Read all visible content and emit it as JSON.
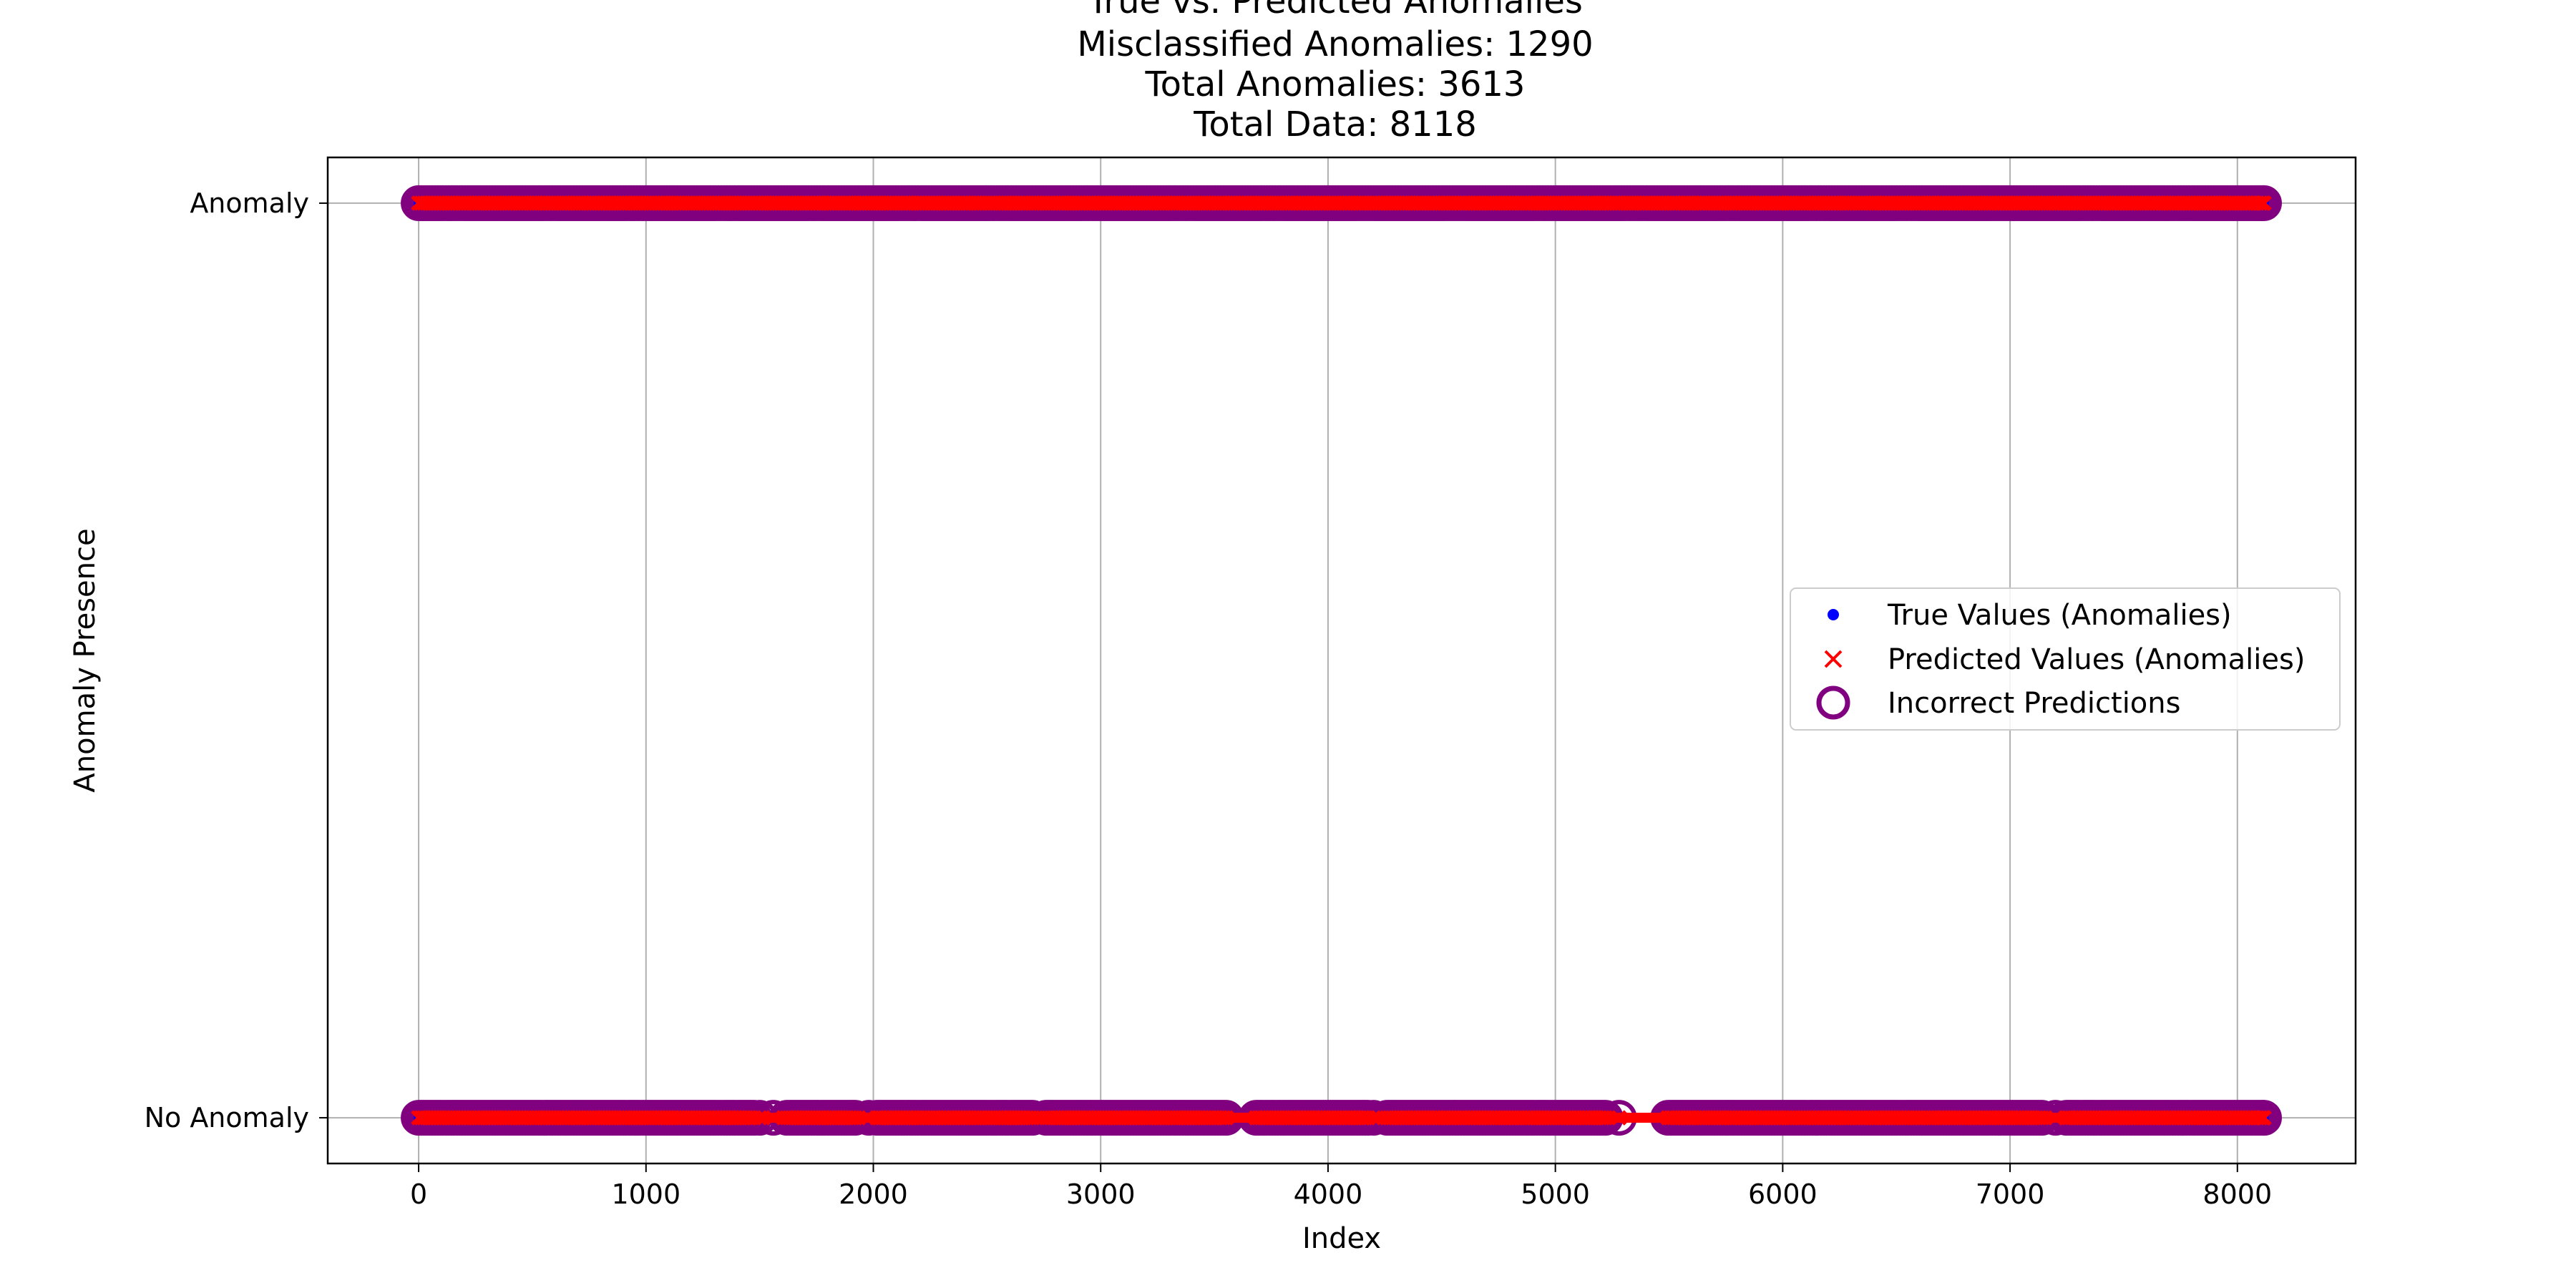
{
  "chart_data": {
    "type": "scatter",
    "title_lines": [
      "True vs. Predicted Anomalies",
      "Misclassified Anomalies: 1290",
      "Total Anomalies: 3613",
      "Total Data: 8118"
    ],
    "xlabel": "Index",
    "ylabel": "Anomaly Presence",
    "xlim": [
      -400,
      8520
    ],
    "ylim": [
      -0.05,
      1.05
    ],
    "x_ticks": [
      0,
      1000,
      2000,
      3000,
      4000,
      5000,
      6000,
      7000,
      8000
    ],
    "y_ticks": [
      {
        "value": 0,
        "label": "No Anomaly"
      },
      {
        "value": 1,
        "label": "Anomaly"
      }
    ],
    "grid": true,
    "legend_position": "center-right",
    "series": [
      {
        "name": "True Values (Anomalies)",
        "marker": "dot",
        "color": "#0000ff"
      },
      {
        "name": "Predicted Values (Anomalies)",
        "marker": "x",
        "color": "#ff0000"
      },
      {
        "name": "Incorrect Predictions",
        "marker": "open-circle",
        "color": "#800080"
      }
    ],
    "x_range": [
      0,
      8117
    ],
    "anomaly_row_value": 1,
    "no_anomaly_row_value": 0,
    "no_anomaly_gaps": [
      [
        5330,
        5490
      ],
      [
        3560,
        3680
      ]
    ],
    "no_anomaly_sparse_spans": [
      [
        1480,
        1620
      ],
      [
        1920,
        2010
      ],
      [
        2700,
        2760
      ],
      [
        4180,
        4270
      ],
      [
        5220,
        5330
      ],
      [
        7150,
        7240
      ]
    ]
  }
}
